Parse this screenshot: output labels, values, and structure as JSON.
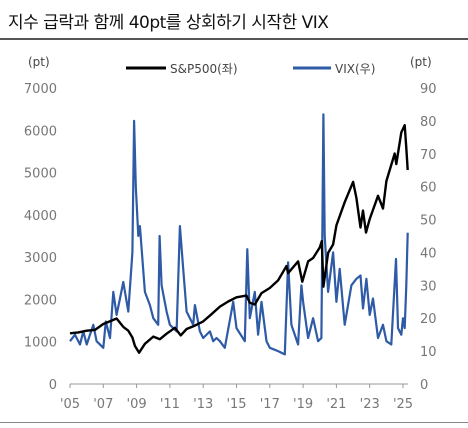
{
  "title": "지수 급락과 함께 40pt를 상회하기 시작한 VIX",
  "chart_data": {
    "type": "line",
    "left_unit": "(pt)",
    "right_unit": "(pt)",
    "left_axis": {
      "min": 0,
      "max": 7000,
      "ticks": [
        0,
        1000,
        2000,
        3000,
        4000,
        5000,
        6000,
        7000
      ]
    },
    "right_axis": {
      "min": 0,
      "max": 90,
      "ticks": [
        0,
        10,
        20,
        30,
        40,
        50,
        60,
        70,
        80,
        90
      ]
    },
    "x_axis": {
      "min": 2005,
      "max": 2025.3,
      "ticks": [
        {
          "v": 2005,
          "label": "'05"
        },
        {
          "v": 2007,
          "label": "'07"
        },
        {
          "v": 2009,
          "label": "'09"
        },
        {
          "v": 2011,
          "label": "'11"
        },
        {
          "v": 2013,
          "label": "'13"
        },
        {
          "v": 2015,
          "label": "'15"
        },
        {
          "v": 2017,
          "label": "'17"
        },
        {
          "v": 2019,
          "label": "'19"
        },
        {
          "v": 2021,
          "label": "'21"
        },
        {
          "v": 2023,
          "label": "'23"
        },
        {
          "v": 2025,
          "label": "'25"
        }
      ]
    },
    "series": [
      {
        "name": "S&P500(좌)",
        "axis": "left",
        "color": "#000000",
        "points": [
          [
            2005.0,
            1200
          ],
          [
            2005.5,
            1220
          ],
          [
            2006.0,
            1260
          ],
          [
            2006.5,
            1280
          ],
          [
            2007.0,
            1420
          ],
          [
            2007.5,
            1500
          ],
          [
            2007.8,
            1550
          ],
          [
            2008.2,
            1350
          ],
          [
            2008.5,
            1260
          ],
          [
            2008.75,
            1100
          ],
          [
            2008.9,
            900
          ],
          [
            2009.15,
            740
          ],
          [
            2009.5,
            950
          ],
          [
            2010.0,
            1120
          ],
          [
            2010.4,
            1060
          ],
          [
            2010.8,
            1190
          ],
          [
            2011.3,
            1330
          ],
          [
            2011.65,
            1150
          ],
          [
            2012.0,
            1300
          ],
          [
            2012.5,
            1380
          ],
          [
            2013.0,
            1480
          ],
          [
            2013.5,
            1650
          ],
          [
            2014.0,
            1830
          ],
          [
            2014.5,
            1950
          ],
          [
            2015.0,
            2050
          ],
          [
            2015.6,
            2090
          ],
          [
            2015.8,
            1920
          ],
          [
            2016.1,
            1880
          ],
          [
            2016.5,
            2150
          ],
          [
            2017.0,
            2270
          ],
          [
            2017.5,
            2450
          ],
          [
            2018.0,
            2790
          ],
          [
            2018.1,
            2620
          ],
          [
            2018.7,
            2900
          ],
          [
            2018.95,
            2420
          ],
          [
            2019.3,
            2900
          ],
          [
            2019.6,
            2980
          ],
          [
            2020.0,
            3230
          ],
          [
            2020.12,
            3380
          ],
          [
            2020.22,
            2300
          ],
          [
            2020.5,
            3100
          ],
          [
            2020.8,
            3300
          ],
          [
            2021.0,
            3750
          ],
          [
            2021.5,
            4300
          ],
          [
            2022.0,
            4780
          ],
          [
            2022.2,
            4400
          ],
          [
            2022.45,
            3700
          ],
          [
            2022.6,
            4100
          ],
          [
            2022.78,
            3580
          ],
          [
            2023.0,
            3900
          ],
          [
            2023.5,
            4450
          ],
          [
            2023.8,
            4150
          ],
          [
            2024.0,
            4800
          ],
          [
            2024.5,
            5450
          ],
          [
            2024.6,
            5200
          ],
          [
            2024.9,
            5950
          ],
          [
            2025.1,
            6120
          ],
          [
            2025.2,
            5580
          ],
          [
            2025.28,
            5060
          ]
        ]
      },
      {
        "name": "VIX(우)",
        "axis": "right",
        "color": "#2e5aa6",
        "points": [
          [
            2005.0,
            13
          ],
          [
            2005.3,
            15
          ],
          [
            2005.6,
            12
          ],
          [
            2005.8,
            16
          ],
          [
            2006.0,
            12
          ],
          [
            2006.4,
            18
          ],
          [
            2006.6,
            13
          ],
          [
            2007.0,
            11
          ],
          [
            2007.15,
            19
          ],
          [
            2007.4,
            14
          ],
          [
            2007.6,
            28
          ],
          [
            2007.8,
            21
          ],
          [
            2008.0,
            26
          ],
          [
            2008.2,
            31
          ],
          [
            2008.5,
            22
          ],
          [
            2008.75,
            40
          ],
          [
            2008.85,
            80
          ],
          [
            2008.95,
            60
          ],
          [
            2009.1,
            45
          ],
          [
            2009.2,
            48
          ],
          [
            2009.5,
            28
          ],
          [
            2009.8,
            24
          ],
          [
            2010.0,
            20
          ],
          [
            2010.3,
            18
          ],
          [
            2010.38,
            45
          ],
          [
            2010.5,
            30
          ],
          [
            2010.8,
            22
          ],
          [
            2011.0,
            18
          ],
          [
            2011.4,
            16
          ],
          [
            2011.6,
            48
          ],
          [
            2011.8,
            35
          ],
          [
            2012.0,
            22
          ],
          [
            2012.4,
            18
          ],
          [
            2012.5,
            24
          ],
          [
            2012.8,
            16
          ],
          [
            2013.0,
            14
          ],
          [
            2013.4,
            16
          ],
          [
            2013.6,
            13
          ],
          [
            2013.8,
            14
          ],
          [
            2014.0,
            13
          ],
          [
            2014.3,
            11
          ],
          [
            2014.8,
            25
          ],
          [
            2015.0,
            17
          ],
          [
            2015.5,
            13
          ],
          [
            2015.65,
            41
          ],
          [
            2015.8,
            20
          ],
          [
            2016.1,
            28
          ],
          [
            2016.3,
            15
          ],
          [
            2016.5,
            25
          ],
          [
            2016.8,
            13
          ],
          [
            2017.0,
            11
          ],
          [
            2017.5,
            10
          ],
          [
            2017.9,
            9
          ],
          [
            2018.1,
            37
          ],
          [
            2018.3,
            18
          ],
          [
            2018.7,
            12
          ],
          [
            2018.9,
            30
          ],
          [
            2019.0,
            25
          ],
          [
            2019.3,
            14
          ],
          [
            2019.6,
            20
          ],
          [
            2019.9,
            13
          ],
          [
            2020.1,
            14
          ],
          [
            2020.22,
            82
          ],
          [
            2020.3,
            45
          ],
          [
            2020.5,
            28
          ],
          [
            2020.8,
            40
          ],
          [
            2021.0,
            25
          ],
          [
            2021.2,
            35
          ],
          [
            2021.5,
            18
          ],
          [
            2021.9,
            30
          ],
          [
            2022.2,
            32
          ],
          [
            2022.45,
            33
          ],
          [
            2022.6,
            23
          ],
          [
            2022.8,
            32
          ],
          [
            2023.0,
            21
          ],
          [
            2023.2,
            26
          ],
          [
            2023.5,
            14
          ],
          [
            2023.8,
            18
          ],
          [
            2024.0,
            13
          ],
          [
            2024.3,
            12
          ],
          [
            2024.58,
            38
          ],
          [
            2024.7,
            17
          ],
          [
            2024.9,
            15
          ],
          [
            2025.0,
            20
          ],
          [
            2025.1,
            17
          ],
          [
            2025.2,
            30
          ],
          [
            2025.28,
            46
          ]
        ]
      }
    ]
  }
}
